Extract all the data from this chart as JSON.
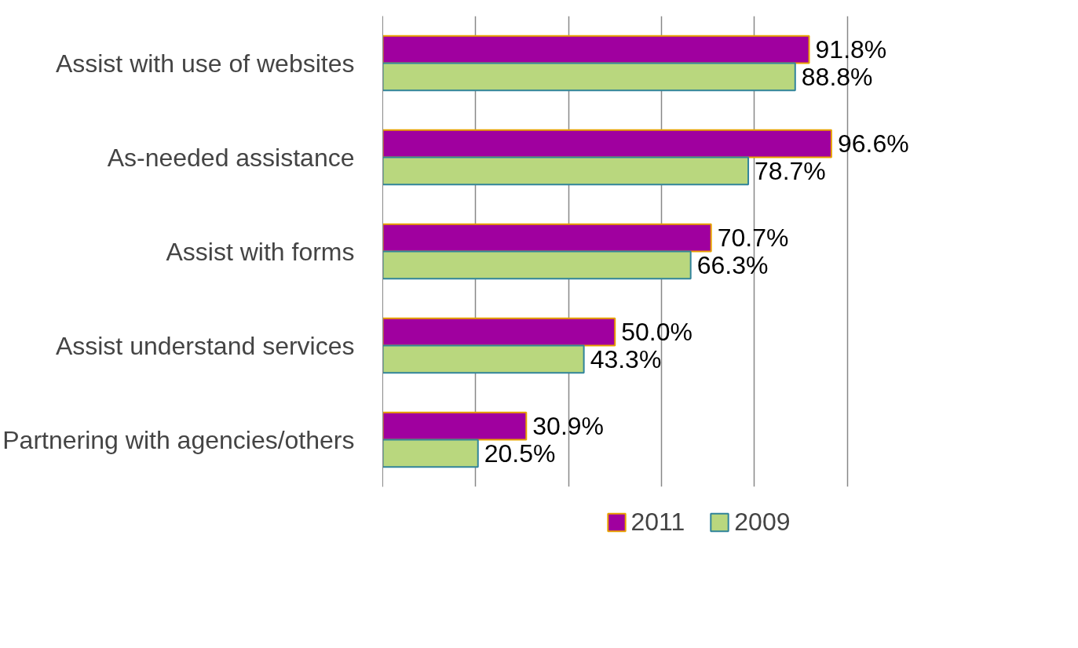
{
  "chart_data": {
    "type": "bar",
    "orientation": "horizontal",
    "categories": [
      "Assist with use of websites",
      "As-needed assistance",
      "Assist with forms",
      "Assist understand services",
      "Partnering with agencies/others"
    ],
    "series": [
      {
        "name": "2011",
        "color": "#a0009f",
        "values": [
          91.8,
          96.6,
          70.7,
          50.0,
          30.9
        ],
        "value_labels": [
          "91.8%",
          "96.6%",
          "70.7%",
          "50.0%",
          "30.9%"
        ]
      },
      {
        "name": "2009",
        "color": "#b9d77e",
        "values": [
          88.8,
          78.7,
          66.3,
          43.3,
          20.5
        ],
        "value_labels": [
          "88.8%",
          "78.7%",
          "66.3%",
          "43.3%",
          "20.5%"
        ]
      }
    ],
    "tick_labels": "y",
    "grid": "x",
    "legend": "bottom"
  }
}
